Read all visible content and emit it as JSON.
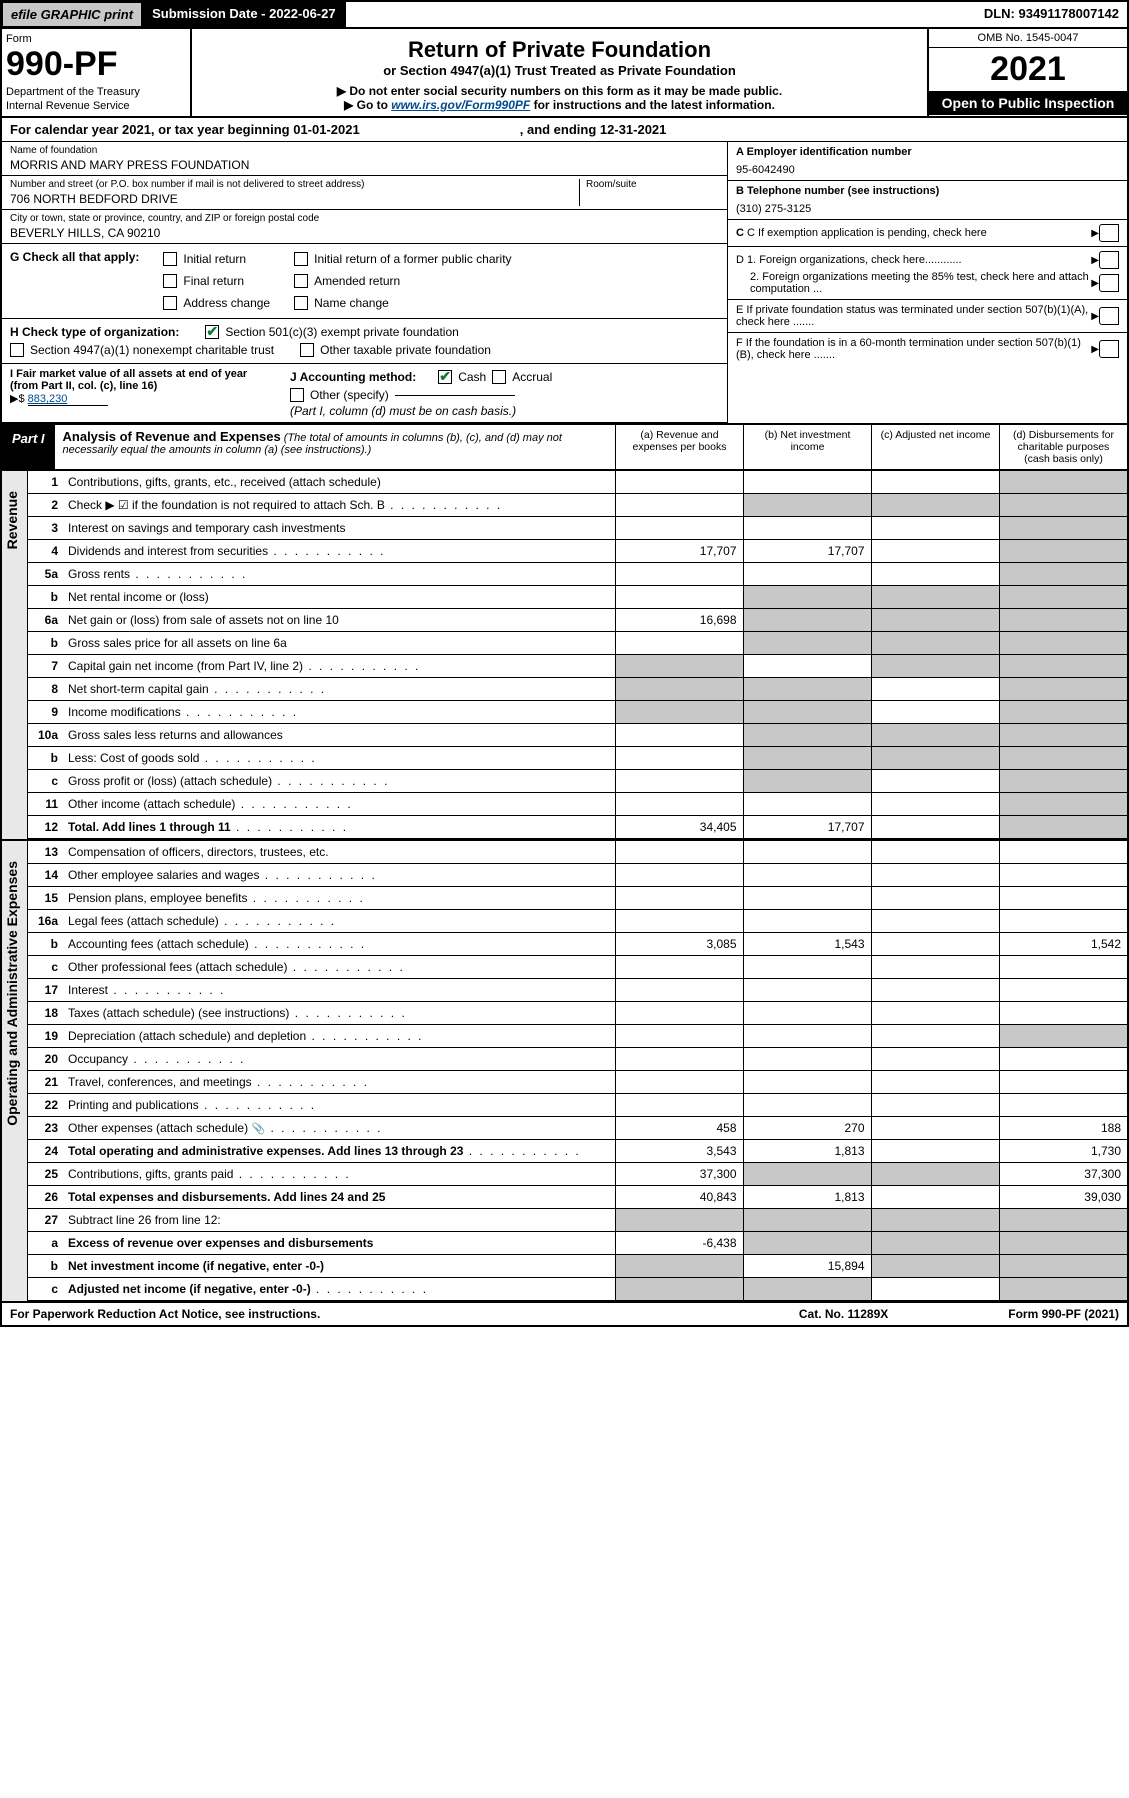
{
  "topbar": {
    "efile": "efile GRAPHIC print",
    "submission_label": "Submission Date - 2022-06-27",
    "dln": "DLN: 93491178007142"
  },
  "header": {
    "form_word": "Form",
    "form_number": "990-PF",
    "dept1": "Department of the Treasury",
    "dept2": "Internal Revenue Service",
    "title": "Return of Private Foundation",
    "subtitle1": "or Section 4947(a)(1) Trust Treated as Private Foundation",
    "subtitle2": "▶ Do not enter social security numbers on this form as it may be made public.",
    "subtitle3_pre": "▶ Go to ",
    "subtitle3_link": "www.irs.gov/Form990PF",
    "subtitle3_post": " for instructions and the latest information.",
    "omb": "OMB No. 1545-0047",
    "year": "2021",
    "open": "Open to Public Inspection"
  },
  "calendar": {
    "text": "For calendar year 2021, or tax year beginning 01-01-2021",
    "ending": ", and ending 12-31-2021"
  },
  "org": {
    "name_label": "Name of foundation",
    "name": "MORRIS AND MARY PRESS FOUNDATION",
    "addr_label": "Number and street (or P.O. box number if mail is not delivered to street address)",
    "addr": "706 NORTH BEDFORD DRIVE",
    "room_label": "Room/suite",
    "city_label": "City or town, state or province, country, and ZIP or foreign postal code",
    "city": "BEVERLY HILLS, CA  90210"
  },
  "right_info": {
    "a_label": "A Employer identification number",
    "a_val": "95-6042490",
    "b_label": "B Telephone number (see instructions)",
    "b_val": "(310) 275-3125",
    "c_label": "C If exemption application is pending, check here",
    "d1_label": "D 1. Foreign organizations, check here............",
    "d2_label": "2. Foreign organizations meeting the 85% test, check here and attach computation ...",
    "e_label": "E  If private foundation status was terminated under section 507(b)(1)(A), check here .......",
    "f_label": "F  If the foundation is in a 60-month termination under section 507(b)(1)(B), check here ......."
  },
  "g": {
    "label": "G Check all that apply:",
    "initial": "Initial return",
    "initial_former": "Initial return of a former public charity",
    "final": "Final return",
    "amended": "Amended return",
    "address": "Address change",
    "name": "Name change"
  },
  "h": {
    "label": "H Check type of organization:",
    "opt1": "Section 501(c)(3) exempt private foundation",
    "opt2": "Section 4947(a)(1) nonexempt charitable trust",
    "opt3": "Other taxable private foundation"
  },
  "i": {
    "label": "I Fair market value of all assets at end of year (from Part II, col. (c), line 16)",
    "arrow": "▶$",
    "value": "883,230"
  },
  "j": {
    "label": "J Accounting method:",
    "cash": "Cash",
    "accrual": "Accrual",
    "other": "Other (specify)",
    "note": "(Part I, column (d) must be on cash basis.)"
  },
  "part1": {
    "tab": "Part I",
    "title": "Analysis of Revenue and Expenses",
    "sub": " (The total of amounts in columns (b), (c), and (d) may not necessarily equal the amounts in column (a) (see instructions).)",
    "col_a": "(a)   Revenue and expenses per books",
    "col_b": "(b)   Net investment income",
    "col_c": "(c)   Adjusted net income",
    "col_d": "(d)   Disbursements for charitable purposes (cash basis only)"
  },
  "side_labels": {
    "revenue": "Revenue",
    "expenses": "Operating and Administrative Expenses"
  },
  "rows": [
    {
      "n": "1",
      "desc": "Contributions, gifts, grants, etc., received (attach schedule)",
      "a": "",
      "b": "",
      "c": "",
      "d": "",
      "grey_d": true
    },
    {
      "n": "2",
      "desc": "Check ▶ ☑ if the foundation is not required to attach Sch. B",
      "a": "",
      "b": "g",
      "c": "g",
      "d": "g",
      "dots": true,
      "grey_bcd": true
    },
    {
      "n": "3",
      "desc": "Interest on savings and temporary cash investments",
      "a": "",
      "b": "",
      "c": "",
      "d": "",
      "grey_d": true
    },
    {
      "n": "4",
      "desc": "Dividends and interest from securities",
      "a": "17,707",
      "b": "17,707",
      "c": "",
      "d": "",
      "grey_d": true,
      "dots": true
    },
    {
      "n": "5a",
      "desc": "Gross rents",
      "a": "",
      "b": "",
      "c": "",
      "d": "",
      "grey_d": true,
      "dots": true
    },
    {
      "n": "b",
      "desc": "Net rental income or (loss)",
      "a": "",
      "b": "g",
      "c": "g",
      "d": "g",
      "grey_bcd": true,
      "inline_box": true
    },
    {
      "n": "6a",
      "desc": "Net gain or (loss) from sale of assets not on line 10",
      "a": "16,698",
      "b": "g",
      "c": "g",
      "d": "",
      "grey_bc": true,
      "grey_d": true
    },
    {
      "n": "b",
      "desc": "Gross sales price for all assets on line 6a",
      "a": "",
      "b": "g",
      "c": "g",
      "d": "g",
      "grey_bcd": true,
      "inline_box": true
    },
    {
      "n": "7",
      "desc": "Capital gain net income (from Part IV, line 2)",
      "a": "g",
      "b": "",
      "c": "g",
      "d": "g",
      "grey_a": true,
      "grey_cd": true,
      "dots": true
    },
    {
      "n": "8",
      "desc": "Net short-term capital gain",
      "a": "g",
      "b": "g",
      "c": "",
      "d": "g",
      "grey_ab": true,
      "grey_d": true,
      "dots": true
    },
    {
      "n": "9",
      "desc": "Income modifications",
      "a": "g",
      "b": "g",
      "c": "",
      "d": "g",
      "grey_ab": true,
      "grey_d": true,
      "dots": true
    },
    {
      "n": "10a",
      "desc": "Gross sales less returns and allowances",
      "a": "",
      "b": "g",
      "c": "g",
      "d": "g",
      "grey_bcd": true,
      "inline_box": true
    },
    {
      "n": "b",
      "desc": "Less: Cost of goods sold",
      "a": "",
      "b": "g",
      "c": "g",
      "d": "g",
      "grey_bcd": true,
      "dots": true,
      "inline_box": true
    },
    {
      "n": "c",
      "desc": "Gross profit or (loss) (attach schedule)",
      "a": "",
      "b": "g",
      "c": "",
      "d": "g",
      "grey_b": true,
      "grey_d": true,
      "dots": true
    },
    {
      "n": "11",
      "desc": "Other income (attach schedule)",
      "a": "",
      "b": "",
      "c": "",
      "d": "",
      "grey_d": true,
      "dots": true
    },
    {
      "n": "12",
      "desc": "Total. Add lines 1 through 11",
      "a": "34,405",
      "b": "17,707",
      "c": "",
      "d": "",
      "grey_d": true,
      "bold": true,
      "dots": true
    }
  ],
  "exp_rows": [
    {
      "n": "13",
      "desc": "Compensation of officers, directors, trustees, etc.",
      "a": "",
      "b": "",
      "c": "",
      "d": ""
    },
    {
      "n": "14",
      "desc": "Other employee salaries and wages",
      "a": "",
      "b": "",
      "c": "",
      "d": "",
      "dots": true
    },
    {
      "n": "15",
      "desc": "Pension plans, employee benefits",
      "a": "",
      "b": "",
      "c": "",
      "d": "",
      "dots": true
    },
    {
      "n": "16a",
      "desc": "Legal fees (attach schedule)",
      "a": "",
      "b": "",
      "c": "",
      "d": "",
      "dots": true
    },
    {
      "n": "b",
      "desc": "Accounting fees (attach schedule)",
      "a": "3,085",
      "b": "1,543",
      "c": "",
      "d": "1,542",
      "dots": true
    },
    {
      "n": "c",
      "desc": "Other professional fees (attach schedule)",
      "a": "",
      "b": "",
      "c": "",
      "d": "",
      "dots": true
    },
    {
      "n": "17",
      "desc": "Interest",
      "a": "",
      "b": "",
      "c": "",
      "d": "",
      "dots": true
    },
    {
      "n": "18",
      "desc": "Taxes (attach schedule) (see instructions)",
      "a": "",
      "b": "",
      "c": "",
      "d": "",
      "dots": true
    },
    {
      "n": "19",
      "desc": "Depreciation (attach schedule) and depletion",
      "a": "",
      "b": "",
      "c": "",
      "d": "",
      "grey_d": true,
      "dots": true
    },
    {
      "n": "20",
      "desc": "Occupancy",
      "a": "",
      "b": "",
      "c": "",
      "d": "",
      "dots": true
    },
    {
      "n": "21",
      "desc": "Travel, conferences, and meetings",
      "a": "",
      "b": "",
      "c": "",
      "d": "",
      "dots": true
    },
    {
      "n": "22",
      "desc": "Printing and publications",
      "a": "",
      "b": "",
      "c": "",
      "d": "",
      "dots": true
    },
    {
      "n": "23",
      "desc": "Other expenses (attach schedule)",
      "a": "458",
      "b": "270",
      "c": "",
      "d": "188",
      "dots": true,
      "attach": true
    },
    {
      "n": "24",
      "desc": "Total operating and administrative expenses. Add lines 13 through 23",
      "a": "3,543",
      "b": "1,813",
      "c": "",
      "d": "1,730",
      "bold": true,
      "dots": true
    },
    {
      "n": "25",
      "desc": "Contributions, gifts, grants paid",
      "a": "37,300",
      "b": "g",
      "c": "g",
      "d": "37,300",
      "grey_bc": true,
      "dots": true
    },
    {
      "n": "26",
      "desc": "Total expenses and disbursements. Add lines 24 and 25",
      "a": "40,843",
      "b": "1,813",
      "c": "",
      "d": "39,030",
      "bold": true
    },
    {
      "n": "27",
      "desc": "Subtract line 26 from line 12:",
      "a": "g",
      "b": "g",
      "c": "g",
      "d": "g",
      "grey_all": true
    },
    {
      "n": "a",
      "desc": "Excess of revenue over expenses and disbursements",
      "a": "-6,438",
      "b": "g",
      "c": "g",
      "d": "g",
      "grey_bcd": true,
      "bold": true
    },
    {
      "n": "b",
      "desc": "Net investment income (if negative, enter -0-)",
      "a": "g",
      "b": "15,894",
      "c": "g",
      "d": "g",
      "grey_a": true,
      "grey_cd": true,
      "bold": true
    },
    {
      "n": "c",
      "desc": "Adjusted net income (if negative, enter -0-)",
      "a": "g",
      "b": "g",
      "c": "",
      "d": "g",
      "grey_ab": true,
      "grey_d": true,
      "bold": true,
      "dots": true
    }
  ],
  "footer": {
    "left": "For Paperwork Reduction Act Notice, see instructions.",
    "center": "Cat. No. 11289X",
    "right": "Form 990-PF (2021)"
  }
}
